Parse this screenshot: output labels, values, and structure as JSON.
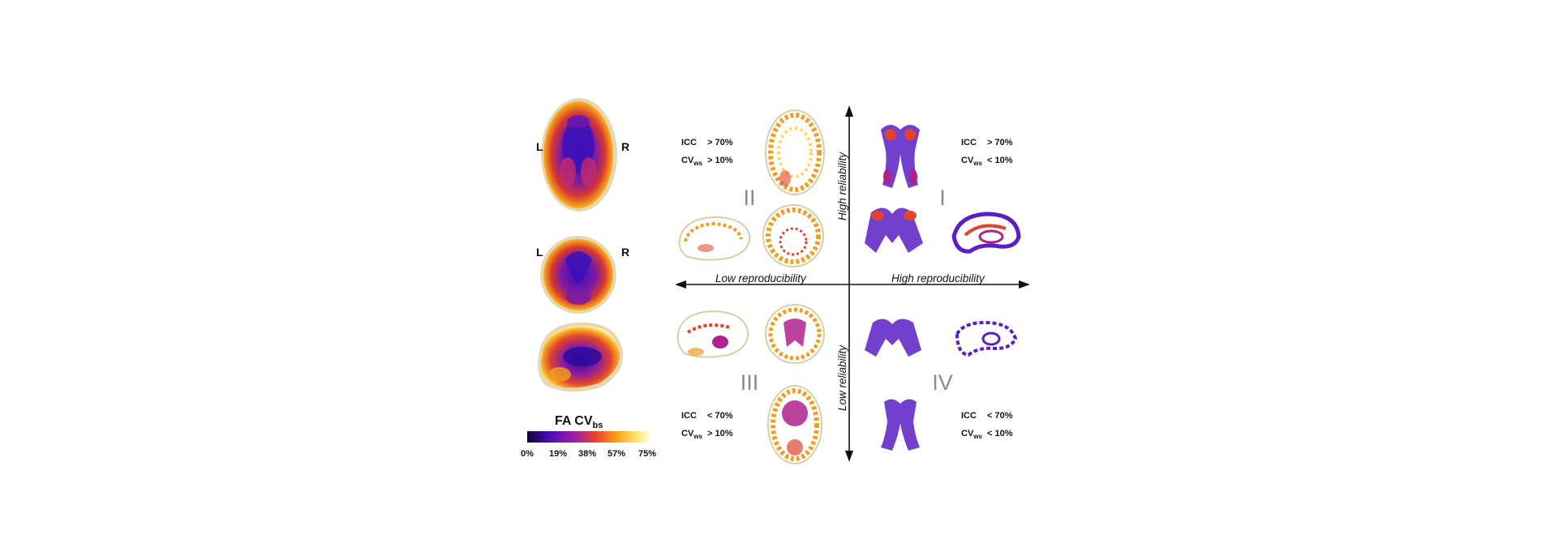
{
  "left_panel": {
    "axial_labels": {
      "left": "L",
      "right": "R"
    },
    "coronal_labels": {
      "left": "L",
      "right": "R"
    },
    "colorbar": {
      "title_main": "FA CV",
      "title_sub": "bs",
      "ticks": [
        "0%",
        "19%",
        "38%",
        "57%",
        "75%"
      ],
      "colors": [
        "#12003a",
        "#4b0db5",
        "#9b1fa8",
        "#e8402c",
        "#f89c16",
        "#ffe46a",
        "#ffffe8"
      ]
    }
  },
  "axes": {
    "x_left": "Low reproducibility",
    "x_right": "High reproducibility",
    "y_top": "High reliability",
    "y_bottom": "Low reliability"
  },
  "quadrants": {
    "q1": {
      "numeral": "I",
      "icc": "ICC",
      "icc_cmp": "> 70%",
      "cv_main": "CV",
      "cv_sub": "ws",
      "cv_cmp": "< 10%"
    },
    "q2": {
      "numeral": "II",
      "icc": "ICC",
      "icc_cmp": "> 70%",
      "cv_main": "CV",
      "cv_sub": "ws",
      "cv_cmp": "> 10%"
    },
    "q3": {
      "numeral": "III",
      "icc": "ICC",
      "icc_cmp": "< 70%",
      "cv_main": "CV",
      "cv_sub": "ws",
      "cv_cmp": "> 10%"
    },
    "q4": {
      "numeral": "IV",
      "icc": "ICC",
      "icc_cmp": "< 70%",
      "cv_main": "CV",
      "cv_sub": "ws",
      "cv_cmp": "< 10%"
    }
  },
  "palette": {
    "hot_outline": "#d9c99a",
    "purple": "#5a1fc4",
    "magenta": "#b0218f",
    "orange": "#f0901a",
    "yellow": "#ffd84a",
    "red": "#e2432a"
  }
}
